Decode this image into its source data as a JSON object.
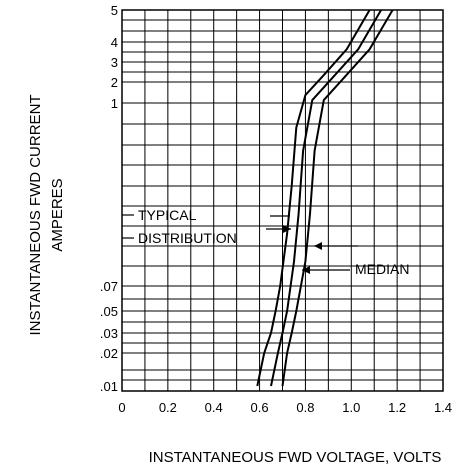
{
  "chart_data": {
    "type": "line",
    "xlabel": "INSTANTANEOUS FWD VOLTAGE, VOLTS",
    "ylabel_line1": "INSTANTANEOUS FWD CURRENT",
    "ylabel_line2": "AMPERES",
    "xlim": [
      0,
      1.4
    ],
    "x_ticks": [
      {
        "value": 0,
        "label": "0"
      },
      {
        "value": 0.2,
        "label": "0.2"
      },
      {
        "value": 0.4,
        "label": "0.4"
      },
      {
        "value": 0.6,
        "label": "0.6"
      },
      {
        "value": 0.8,
        "label": "0.8"
      },
      {
        "value": 1.0,
        "label": "1.0"
      },
      {
        "value": 1.2,
        "label": "1.2"
      },
      {
        "value": 1.4,
        "label": "1.4"
      }
    ],
    "y_scale": "log",
    "y_ticks": [
      {
        "value": 5,
        "label": "5"
      },
      {
        "value": 4,
        "label": "4"
      },
      {
        "value": 3,
        "label": "3"
      },
      {
        "value": 2,
        "label": "2"
      },
      {
        "value": 1,
        "label": "1"
      },
      {
        "value": 0.07,
        "label": ".07"
      },
      {
        "value": 0.05,
        "label": ".05"
      },
      {
        "value": 0.03,
        "label": ".03"
      },
      {
        "value": 0.02,
        "label": ".02"
      },
      {
        "value": 0.01,
        "label": ".01"
      }
    ],
    "grid": true,
    "series": [
      {
        "x": [
          0.59,
          0.62,
          0.65,
          0.67,
          0.69,
          0.72,
          0.74,
          0.76,
          0.8,
          0.88,
          0.98,
          1.08
        ],
        "y": [
          0.01,
          0.02,
          0.03,
          0.05,
          0.07,
          0.15,
          0.3,
          0.7,
          1.3,
          2.3,
          3.6,
          5
        ]
      },
      {
        "x": [
          0.65,
          0.68,
          0.7,
          0.72,
          0.75,
          0.77,
          0.79,
          0.83,
          0.92,
          1.03,
          1.13
        ],
        "y": [
          0.01,
          0.02,
          0.03,
          0.05,
          0.1,
          0.2,
          0.5,
          1.1,
          2.2,
          3.6,
          5
        ]
      },
      {
        "x": [
          0.7,
          0.72,
          0.74,
          0.76,
          0.8,
          0.82,
          0.84,
          0.88,
          0.97,
          1.08,
          1.18
        ],
        "y": [
          0.01,
          0.02,
          0.03,
          0.05,
          0.1,
          0.2,
          0.5,
          1.1,
          2.2,
          3.6,
          5
        ]
      }
    ],
    "annotations": [
      {
        "text": "TYPICAL",
        "arrow_to": {
          "x": 0.72,
          "y": 0.12
        }
      },
      {
        "text": "DISTRIBUTION",
        "arrow_to": {
          "x": 0.79,
          "y": 0.095
        }
      },
      {
        "text": "MEDIAN",
        "arrow_to": {
          "x": 0.76,
          "y": 0.075
        }
      }
    ]
  }
}
